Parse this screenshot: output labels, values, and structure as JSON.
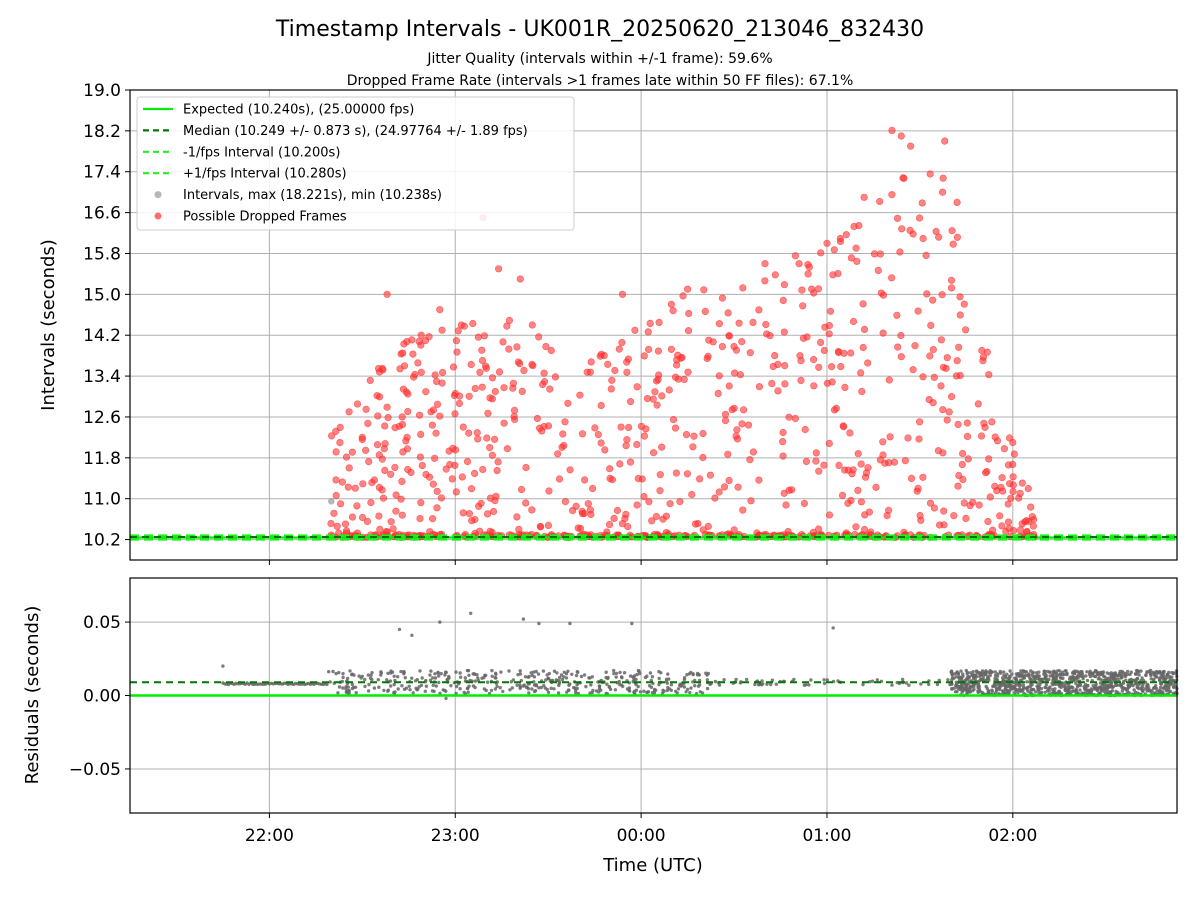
{
  "title": "Timestamp Intervals - UK001R_20250620_213046_832430",
  "subtitle_1": "Jitter Quality (intervals within +/-1 frame): 59.6%",
  "subtitle_2": "Dropped Frame Rate (intervals >1 frames late within 50 FF files): 67.1%",
  "colors": {
    "expected": "#00ee00",
    "median": "#007700",
    "interval_band": "#22ee22",
    "intervals": "#999999",
    "dropped": "#ff3030",
    "residuals": "#666666",
    "grid": "#b0b0b0"
  },
  "chart_data": [
    {
      "type": "scatter",
      "panel": "top",
      "ylabel": "Intervals (seconds)",
      "xlabel": "",
      "xlim": [
        "21:15",
        "02:53"
      ],
      "ylim": [
        9.8,
        19.0
      ],
      "y_ticks": [
        "10.2",
        "11.0",
        "11.8",
        "12.6",
        "13.4",
        "14.2",
        "15.0",
        "15.8",
        "16.6",
        "17.4",
        "18.2",
        "19.0"
      ],
      "x_ticks": [
        "22:00",
        "23:00",
        "00:00",
        "01:00",
        "02:00"
      ],
      "grid": true,
      "legend_position": "top-left",
      "legend": [
        "Expected (10.240s), (25.00000 fps)",
        "Median (10.249 +/- 0.873 s), (24.97764 +/- 1.89 fps)",
        "-1/fps Interval (10.200s)",
        "+1/fps Interval (10.280s)",
        "Intervals, max (18.221s), min (10.238s)",
        "Possible Dropped Frames"
      ],
      "reference_lines": {
        "expected": 10.24,
        "median": 10.249,
        "minus_1fps": 10.2,
        "plus_1fps": 10.28
      },
      "series": [
        {
          "name": "Intervals",
          "summary": {
            "max": 18.221,
            "min": 10.238
          }
        },
        {
          "name": "Possible Dropped Frames",
          "active_window": [
            "22:19",
            "02:07"
          ],
          "envelope": [
            [
              "22:20",
              12.3
            ],
            [
              "22:40",
              14.0
            ],
            [
              "23:00",
              14.4
            ],
            [
              "23:20",
              14.6
            ],
            [
              "23:40",
              13.8
            ],
            [
              "00:00",
              14.5
            ],
            [
              "00:20",
              15.3
            ],
            [
              "00:40",
              15.6
            ],
            [
              "01:00",
              16.0
            ],
            [
              "01:10",
              16.6
            ],
            [
              "01:20",
              17.4
            ],
            [
              "01:30",
              18.2
            ],
            [
              "01:40",
              17.0
            ],
            [
              "01:50",
              14.3
            ],
            [
              "02:00",
              12.0
            ],
            [
              "02:07",
              10.6
            ]
          ],
          "highlights": [
            [
              "22:23",
              10.9
            ],
            [
              "22:30",
              12.2
            ],
            [
              "22:38",
              15.0
            ],
            [
              "22:49",
              14.2
            ],
            [
              "22:55",
              14.7
            ],
            [
              "23:02",
              14.4
            ],
            [
              "23:09",
              16.5
            ],
            [
              "23:14",
              15.5
            ],
            [
              "23:21",
              15.3
            ],
            [
              "23:31",
              13.9
            ],
            [
              "23:54",
              15.0
            ],
            [
              "00:15",
              15.1
            ],
            [
              "00:40",
              15.6
            ],
            [
              "00:51",
              15.6
            ],
            [
              "01:00",
              16.0
            ],
            [
              "01:12",
              16.9
            ],
            [
              "01:21",
              18.21
            ],
            [
              "01:24",
              18.1
            ],
            [
              "01:27",
              17.9
            ],
            [
              "01:38",
              18.0
            ],
            [
              "01:42",
              16.8
            ],
            [
              "01:50",
              13.9
            ],
            [
              "02:00",
              12.1
            ],
            [
              "02:05",
              11.2
            ]
          ]
        }
      ]
    },
    {
      "type": "scatter",
      "panel": "bottom",
      "xlabel": "Time (UTC)",
      "ylabel": "Residuals (seconds)",
      "xlim": [
        "21:15",
        "02:53"
      ],
      "ylim": [
        -0.08,
        0.08
      ],
      "y_ticks": [
        "−0.05",
        "0.00",
        "0.05"
      ],
      "x_ticks": [
        "22:00",
        "23:00",
        "00:00",
        "01:00",
        "02:00"
      ],
      "grid": true,
      "reference_lines": {
        "expected_residual": 0.0,
        "median_residual": 0.009
      },
      "series": [
        {
          "name": "Residuals",
          "outliers": [
            [
              "21:45",
              0.02
            ],
            [
              "22:42",
              0.045
            ],
            [
              "22:46",
              0.041
            ],
            [
              "22:55",
              0.05
            ],
            [
              "23:05",
              0.056
            ],
            [
              "23:22",
              0.052
            ],
            [
              "23:27",
              0.049
            ],
            [
              "23:37",
              0.049
            ],
            [
              "23:57",
              0.049
            ],
            [
              "01:02",
              0.046
            ],
            [
              "22:57",
              -0.002
            ]
          ],
          "dense_band": [
            0.0,
            0.017
          ]
        }
      ]
    }
  ]
}
